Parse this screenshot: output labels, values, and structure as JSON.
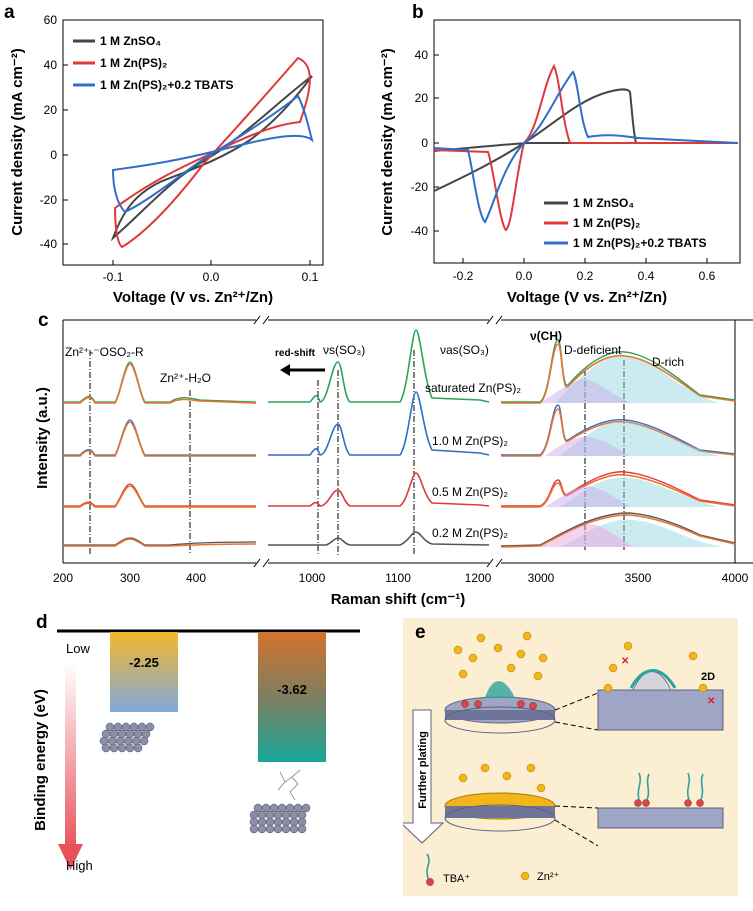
{
  "panels": {
    "a": {
      "label": "a",
      "xlabel": "Voltage (V vs. Zn²⁺/Zn)",
      "ylabel": "Current density (mA cm⁻²)",
      "xticks": [
        "-0.1",
        "0.0",
        "0.1"
      ],
      "yticks": [
        "60",
        "40",
        "20",
        "0",
        "-20",
        "-40"
      ],
      "legend": [
        "1 M ZnSO₄",
        "1 M Zn(PS)₂",
        "1 M Zn(PS)₂+0.2 TBATS"
      ]
    },
    "b": {
      "label": "b",
      "xlabel": "Voltage (V vs. Zn²⁺/Zn)",
      "ylabel": "Current density (mA cm⁻²)",
      "xticks": [
        "-0.2",
        "0.0",
        "0.2",
        "0.4",
        "0.6"
      ],
      "yticks": [
        "40",
        "20",
        "0",
        "-20",
        "-40"
      ],
      "legend": [
        "1 M ZnSO₄",
        "1 M Zn(PS)₂",
        "1 M Zn(PS)₂+0.2 TBATS"
      ]
    },
    "c": {
      "label": "c",
      "xlabel": "Raman shift (cm⁻¹)",
      "ylabel": "Intensity (a.u.)",
      "xticks": [
        "200",
        "300",
        "400",
        "1000",
        "1100",
        "1200",
        "3000",
        "3500",
        "4000"
      ],
      "annotations": {
        "znoso": "Zn²⁺-⁻OSO₂-R",
        "znh2o": "Zn²⁺-H₂O",
        "redshift": "red-shift",
        "vs": "νs(SO₃)",
        "vas": "νas(SO₃)",
        "vch": "ν(CH)",
        "ddef": "D-deficient",
        "drich": "D-rich"
      },
      "series_labels": [
        "saturated Zn(PS)₂",
        "1.0 M Zn(PS)₂",
        "0.5 M Zn(PS)₂",
        "0.2 M Zn(PS)₂"
      ]
    },
    "d": {
      "label": "d",
      "ylabel": "Binding energy (eV)",
      "low": "Low",
      "high": "High",
      "values": [
        "-2.25",
        "-3.62"
      ]
    },
    "e": {
      "label": "e",
      "further": "Further plating",
      "twod": "2D",
      "legend_tba": "TBA⁺",
      "legend_zn": "Zn²⁺"
    }
  },
  "colors": {
    "black": "#454545",
    "red": "#e0383b",
    "blue": "#2f6fc9",
    "green": "#2ca25a",
    "orange": "#e8732e",
    "navy": "#3a5fb0"
  },
  "chart_data": [
    {
      "type": "line",
      "panel": "a",
      "xlim": [
        -0.12,
        0.12
      ],
      "ylim": [
        -50,
        60
      ],
      "series": [
        {
          "name": "1 M ZnSO₄",
          "x": [
            -0.1,
            -0.06,
            -0.02,
            0.02,
            0.06,
            0.1,
            0.06,
            0.02,
            -0.02,
            -0.06,
            -0.1
          ],
          "y": [
            -38,
            -25,
            -6,
            5,
            20,
            36,
            30,
            10,
            -2,
            -14,
            -38
          ]
        },
        {
          "name": "1 M Zn(PS)₂",
          "x": [
            -0.09,
            -0.06,
            -0.02,
            0.02,
            0.06,
            0.085,
            0.1,
            0.06,
            0.02,
            -0.02,
            -0.09
          ],
          "y": [
            -43,
            -32,
            -10,
            6,
            24,
            44,
            38,
            18,
            4,
            -4,
            -43
          ]
        },
        {
          "name": "1 M Zn(PS)₂+0.2 TBATS",
          "x": [
            -0.09,
            -0.06,
            -0.02,
            0.02,
            0.06,
            0.085,
            0.1,
            0.06,
            0.02,
            -0.02,
            -0.1
          ],
          "y": [
            -27,
            -18,
            -6,
            4,
            14,
            27,
            8,
            14,
            5,
            -2,
            -8
          ]
        }
      ]
    },
    {
      "type": "line",
      "panel": "b",
      "xlim": [
        -0.3,
        0.7
      ],
      "ylim": [
        -45,
        45
      ],
      "series": [
        {
          "name": "1 M ZnSO₄",
          "x": [
            -0.3,
            -0.1,
            0.0,
            0.1,
            0.2,
            0.3,
            0.33,
            0.35,
            0.6,
            -0.3
          ],
          "y": [
            -22,
            -10,
            0,
            12,
            20,
            25,
            15,
            0,
            0,
            -4
          ]
        },
        {
          "name": "1 M Zn(PS)₂",
          "x": [
            -0.3,
            -0.2,
            -0.15,
            -0.1,
            0.0,
            0.08,
            0.1,
            0.12,
            0.2,
            0.6
          ],
          "y": [
            -4,
            -6,
            -40,
            -12,
            0,
            20,
            35,
            10,
            0,
            0
          ]
        },
        {
          "name": "1 M Zn(PS)₂+0.2 TBATS",
          "x": [
            -0.3,
            -0.25,
            -0.2,
            -0.15,
            0.0,
            0.12,
            0.15,
            0.18,
            0.25,
            0.6
          ],
          "y": [
            -3,
            -10,
            -36,
            -8,
            0,
            18,
            32,
            5,
            3,
            0
          ]
        }
      ]
    },
    {
      "type": "line",
      "panel": "c",
      "series": [
        {
          "name": "saturated Zn(PS)₂",
          "peaks_cm-1": [
            240,
            300,
            380,
            1013,
            1030,
            1122,
            3085,
            3250,
            3430
          ]
        },
        {
          "name": "1.0 M Zn(PS)₂",
          "peaks_cm-1": [
            240,
            300,
            1013,
            1030,
            1122,
            3085,
            3250,
            3430
          ]
        },
        {
          "name": "0.5 M Zn(PS)₂",
          "peaks_cm-1": [
            240,
            300,
            1013,
            1030,
            1122,
            3085,
            3250,
            3430
          ]
        },
        {
          "name": "0.2 M Zn(PS)₂",
          "peaks_cm-1": [
            300,
            1030,
            1122,
            3250,
            3430
          ]
        }
      ]
    },
    {
      "type": "bar",
      "panel": "d",
      "categories": [
        "",
        ""
      ],
      "values": [
        -2.25,
        -3.62
      ]
    }
  ]
}
